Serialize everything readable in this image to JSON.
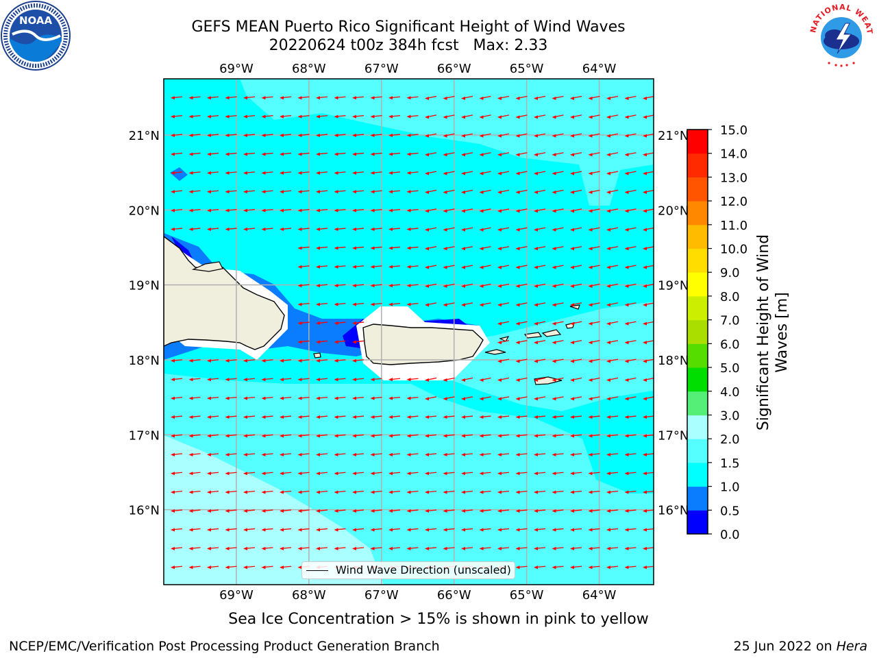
{
  "title": {
    "line1": "GEFS MEAN Puerto Rico Significant Height of Wind Waves",
    "line2": "20220624 t00z 384h fcst   Max: 2.33"
  },
  "logos": {
    "left": "NOAA",
    "right": "NATIONAL WEATHER SERVICE"
  },
  "axes": {
    "lon_labels": [
      "69°W",
      "68°W",
      "67°W",
      "66°W",
      "65°W",
      "64°W"
    ],
    "lat_labels": [
      "21°N",
      "20°N",
      "19°N",
      "18°N",
      "17°N",
      "16°N"
    ],
    "lon_values": [
      -69,
      -68,
      -67,
      -66,
      -65,
      -64
    ],
    "lat_values": [
      21,
      20,
      19,
      18,
      17,
      16
    ],
    "extent": {
      "lon": [
        -70,
        -63.25
      ],
      "lat": [
        15,
        21.75
      ]
    }
  },
  "legend": {
    "label": "Wind Wave Direction (unscaled)"
  },
  "colorbar": {
    "title": "Significant Height of Wind Waves [m]",
    "ticks": [
      "0.0",
      "0.5",
      "1.0",
      "1.5",
      "2.0",
      "3.0",
      "4.0",
      "5.0",
      "6.0",
      "7.0",
      "8.0",
      "9.0",
      "10.0",
      "11.0",
      "12.0",
      "13.0",
      "14.0",
      "15.0"
    ],
    "colors": [
      "#0000ff",
      "#0a7dff",
      "#00ffff",
      "#55ffff",
      "#aaffff",
      "#55ee77",
      "#00dd00",
      "#55dd00",
      "#aadd00",
      "#ccee00",
      "#ffff00",
      "#ffdd00",
      "#ffbb00",
      "#ff8800",
      "#ff5500",
      "#ff2a00",
      "#ff0000"
    ]
  },
  "colors": {
    "land": "#f0eedc",
    "arrow": "#ff0000",
    "grid": "#b0b0b0",
    "sea_1_0_1_5": "#00ffff",
    "sea_1_5_2_0": "#55ffff",
    "sea_2_0_3_0": "#aaffff"
  },
  "notes": {
    "sea_ice": "Sea Ice Concentration > 15% is shown in pink to yellow"
  },
  "footer": {
    "left": "NCEP/EMC/Verification Post Processing Product Generation Branch",
    "right_date": "25 Jun 2022 on",
    "right_host": "Hera"
  }
}
